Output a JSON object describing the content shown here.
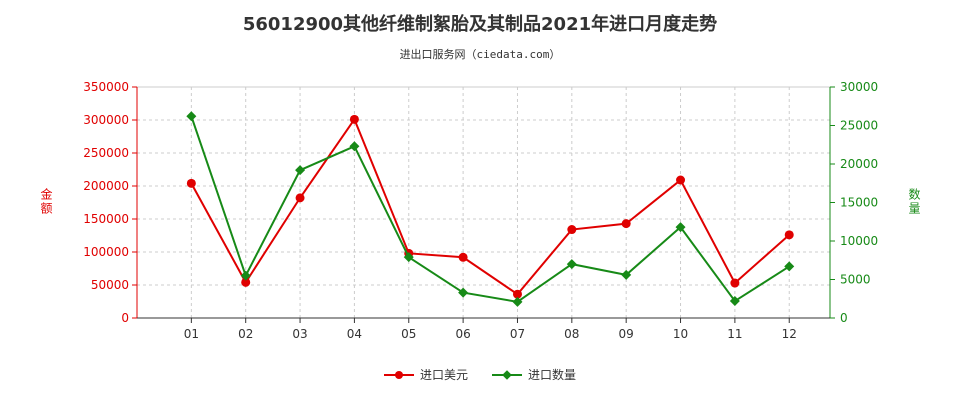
{
  "title": "56012900其他纤维制絮胎及其制品2021年进口月度走势",
  "subtitle": "进出口服务网（ciedata.com）",
  "colors": {
    "left_series": "#e00000",
    "right_series": "#178a17",
    "axis_left": "#e00000",
    "axis_right": "#178a17"
  },
  "chart_data": {
    "type": "line",
    "categories": [
      "01",
      "02",
      "03",
      "04",
      "05",
      "06",
      "07",
      "08",
      "09",
      "10",
      "11",
      "12"
    ],
    "y_left": {
      "label": "金额",
      "min": 0,
      "max": 350000,
      "ticks": [
        0,
        50000,
        100000,
        150000,
        200000,
        250000,
        300000,
        350000
      ]
    },
    "y_right": {
      "label": "数量",
      "min": 0,
      "max": 30000,
      "ticks": [
        0,
        5000,
        10000,
        15000,
        20000,
        25000,
        30000
      ]
    },
    "series": [
      {
        "name": "进口美元",
        "axis": "left",
        "color": "#e00000",
        "values": [
          204000,
          54000,
          182000,
          301000,
          98000,
          92000,
          36000,
          134000,
          143000,
          209000,
          53000,
          126000
        ]
      },
      {
        "name": "进口数量",
        "axis": "right",
        "color": "#178a17",
        "values": [
          26200,
          5500,
          19200,
          22300,
          7900,
          3300,
          2100,
          7000,
          5600,
          11800,
          2200,
          6700
        ]
      }
    ],
    "grid": true,
    "legend_position": "bottom"
  }
}
